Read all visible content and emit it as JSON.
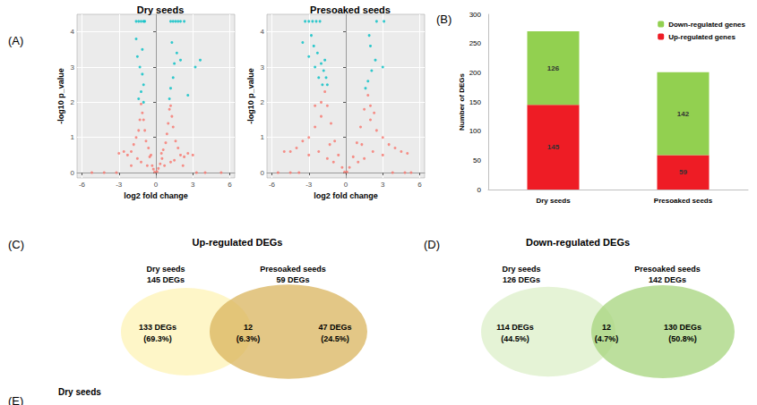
{
  "chart_data": [
    {
      "type": "scatter",
      "panel": "(A)",
      "title": "Dry seeds",
      "x_label": "log2 fold change",
      "y_label": "-log10 p_value",
      "xlim": [
        -6.4,
        6.4
      ],
      "xticks": [
        -6,
        -3,
        0,
        3,
        6
      ],
      "ylim": [
        -0.15,
        4.5
      ],
      "yticks": [
        0,
        1,
        2,
        3,
        4
      ],
      "grid": true,
      "series": [
        {
          "color": "#f8766d",
          "marker": "circle",
          "x": [
            -0.1,
            0.1,
            -0.2,
            0.2,
            -0.3,
            0.35,
            -0.5,
            0.5,
            -0.6,
            0.6,
            -0.8,
            0.8,
            -0.9,
            0.9,
            -1.0,
            1.0,
            -1.1,
            1.1,
            -1.2,
            1.2,
            -1.4,
            1.4,
            -1.6,
            1.6,
            -1.8,
            1.8,
            -2.0,
            2.0,
            -2.3,
            2.3,
            -2.6,
            2.6,
            -3.0,
            3.0,
            -1.5,
            1.5,
            -1.2,
            1.2,
            -0.7,
            0.7,
            -2.0,
            2.2,
            -3.2,
            3.3,
            -4.2,
            4.0,
            -5.2,
            5.3,
            -1.3,
            1.3,
            -0.4,
            0.45
          ],
          "values": [
            0.02,
            0.03,
            0.1,
            0.12,
            0.2,
            0.25,
            0.45,
            0.4,
            0.7,
            0.65,
            0.9,
            0.85,
            1.2,
            1.1,
            1.5,
            1.4,
            1.7,
            1.8,
            1.95,
            1.9,
            1.2,
            1.3,
            1.0,
            0.9,
            0.8,
            0.7,
            0.6,
            0.5,
            0.5,
            0.45,
            0.6,
            0.55,
            0.55,
            0.5,
            0.4,
            0.35,
            0.3,
            0.3,
            0.2,
            0.2,
            0.2,
            0.2,
            0,
            0,
            0,
            0,
            0,
            0,
            1.5,
            1.6,
            0.5,
            0.55
          ]
        },
        {
          "color": "#00bfc4",
          "marker": "circle",
          "x": [
            -1.6,
            -1.4,
            -1.2,
            -1.0,
            -0.9,
            1.2,
            1.4,
            1.6,
            1.8,
            2.0,
            2.3,
            -1.5,
            -1.3,
            -1.1,
            -1.0,
            -1.2,
            -1.4,
            -1.0,
            -1.6,
            -1.1,
            1.1,
            1.2,
            1.4,
            1.5,
            1.7,
            1.3,
            2.0,
            3.2,
            3.6,
            2.6
          ],
          "values": [
            4.3,
            4.3,
            4.3,
            4.3,
            4.3,
            4.3,
            4.3,
            4.3,
            4.3,
            4.3,
            4.3,
            3.3,
            3.0,
            2.8,
            2.5,
            2.3,
            2.1,
            2.0,
            3.8,
            3.5,
            2.1,
            2.4,
            2.7,
            3.1,
            3.4,
            3.7,
            3.2,
            3.0,
            3.2,
            2.2
          ]
        }
      ]
    },
    {
      "type": "scatter",
      "title": "Presoaked seeds",
      "x_label": "log2 fold change",
      "y_label": "-log10 p_value",
      "xlim": [
        -6.4,
        6.4
      ],
      "xticks": [
        -6,
        -3,
        0,
        3,
        6
      ],
      "ylim": [
        -0.15,
        4.5
      ],
      "yticks": [
        0,
        1,
        2,
        3,
        4
      ],
      "grid": true,
      "series": [
        {
          "color": "#f8766d",
          "marker": "circle",
          "x": [
            -0.1,
            0.1,
            -0.3,
            0.3,
            -0.6,
            0.6,
            -0.9,
            0.9,
            -1.2,
            1.2,
            -1.5,
            1.5,
            -1.7,
            1.8,
            -2.0,
            2.0,
            -2.5,
            2.5,
            -3.0,
            3.0,
            -3.5,
            3.5,
            -4.0,
            4.0,
            -4.5,
            4.5,
            -5.0,
            5.0,
            -2.2,
            2.2,
            -1.5,
            1.5,
            -3.0,
            3.0,
            -1.0,
            1.0,
            -5.5,
            5.3,
            -4.5,
            4.8,
            -3.8,
            3.8,
            -2.5,
            2.3,
            -2.0,
            2.0,
            -1.3,
            1.3
          ],
          "values": [
            0.02,
            0.02,
            0.15,
            0.15,
            0.5,
            0.45,
            0.9,
            0.85,
            1.4,
            1.3,
            1.9,
            1.8,
            2.3,
            2.2,
            1.6,
            1.5,
            1.3,
            1.2,
            1.0,
            1.0,
            0.9,
            0.8,
            0.7,
            0.7,
            0.6,
            0.6,
            0.6,
            0.55,
            0.6,
            0.6,
            0.4,
            0.4,
            0.5,
            0.5,
            0.3,
            0.3,
            0,
            0,
            0,
            0,
            0,
            0,
            1.9,
            1.7,
            2.0,
            1.9,
            0.8,
            0.8
          ]
        },
        {
          "color": "#00bfc4",
          "marker": "circle",
          "x": [
            -3.3,
            -3.0,
            -2.7,
            -2.4,
            -2.1,
            2.5,
            3.1,
            -2.8,
            -2.6,
            -2.3,
            -2.0,
            -1.8,
            -1.6,
            -1.5,
            -2.5,
            -3.0,
            -2.2,
            -1.9,
            -3.5,
            -1.7,
            1.6,
            1.8,
            2.1,
            2.4,
            2.0,
            1.9,
            3.0
          ],
          "values": [
            4.3,
            4.3,
            4.3,
            4.3,
            4.3,
            4.3,
            4.3,
            3.9,
            3.6,
            3.4,
            3.1,
            2.9,
            2.7,
            2.5,
            3.0,
            3.3,
            2.7,
            2.5,
            3.7,
            3.2,
            2.4,
            2.6,
            2.9,
            3.2,
            3.6,
            3.9,
            3.0
          ]
        }
      ]
    },
    {
      "type": "bar",
      "panel": "(B)",
      "y_label": "Number of DEGs",
      "categories": [
        "Dry seeds",
        "Presoaked seeds"
      ],
      "ylim": [
        0,
        300
      ],
      "yticks": [
        0,
        50,
        100,
        150,
        200,
        250,
        300
      ],
      "stacked": true,
      "data_labels": true,
      "legend": "upper right",
      "grid": false,
      "series": [
        {
          "name": "Up-regulated genes",
          "color": "#ee1c25",
          "values": [
            145,
            59
          ]
        },
        {
          "name": "Down-regulated genes",
          "color": "#92d050",
          "values": [
            126,
            142
          ]
        }
      ]
    },
    {
      "type": "venn",
      "panel": "(C)",
      "title": "Up-regulated DEGs",
      "sets": [
        {
          "label": "Dry seeds",
          "count_label": "145 DEGs",
          "color": "#fdf3b5"
        },
        {
          "label": "Presoaked seeds",
          "count_label": "59 DEGs",
          "color": "#d9b45e"
        }
      ],
      "regions": [
        {
          "count_label": "133 DEGs",
          "percent_label": "(69.3%)"
        },
        {
          "count_label": "12",
          "percent_label": "(6.3%)"
        },
        {
          "count_label": "47 DEGs",
          "percent_label": "(24.5%)"
        }
      ]
    },
    {
      "type": "venn",
      "panel": "(D)",
      "title": "Down-regulated DEGs",
      "sets": [
        {
          "label": "Dry seeds",
          "count_label": "126 DEGs",
          "color": "#dcefc8"
        },
        {
          "label": "Presoaked seeds",
          "count_label": "142 DEGs",
          "color": "#a6d47c"
        }
      ],
      "regions": [
        {
          "count_label": "114 DEGs",
          "percent_label": "(44.5%)"
        },
        {
          "count_label": "12",
          "percent_label": "(4.7%)"
        },
        {
          "count_label": "130 DEGs",
          "percent_label": "(50.8%)"
        }
      ]
    },
    {
      "type": "fragment",
      "panel": "(E)",
      "title": "Dry seeds"
    }
  ]
}
